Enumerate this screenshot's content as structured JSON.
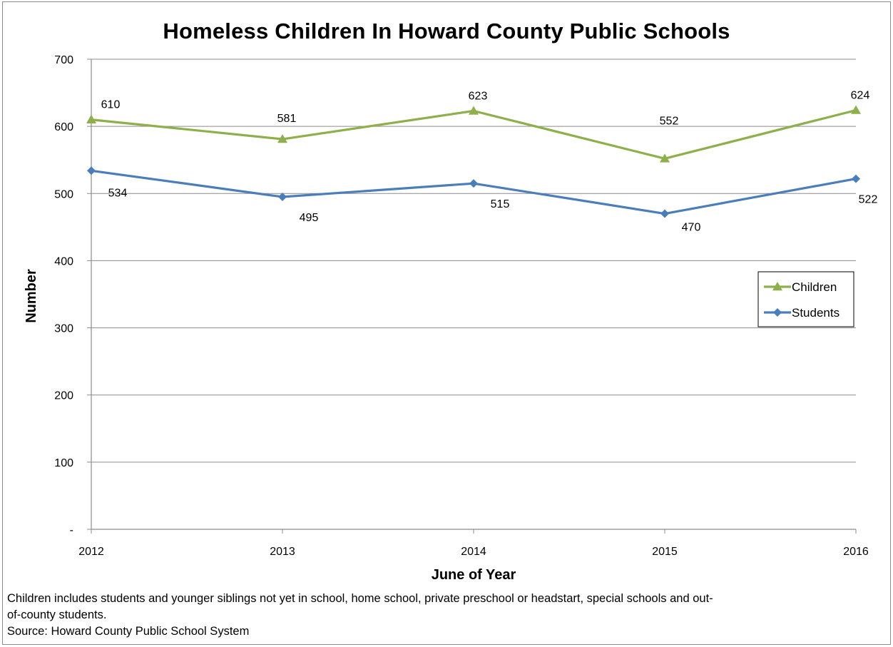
{
  "chart_data": {
    "type": "line",
    "title": "Homeless Children In Howard County Public Schools",
    "xlabel": "June of Year",
    "ylabel": "Number",
    "categories": [
      "2012",
      "2013",
      "2014",
      "2015",
      "2016"
    ],
    "ylim": [
      0,
      700
    ],
    "yticks": [
      0,
      100,
      200,
      300,
      400,
      500,
      600,
      700
    ],
    "ytick_labels": [
      "-",
      "100",
      "200",
      "300",
      "400",
      "500",
      "600",
      "700"
    ],
    "grid": true,
    "legend_position": "right",
    "series": [
      {
        "name": "Children",
        "values": [
          610,
          581,
          623,
          552,
          624
        ],
        "color": "#8db04a",
        "marker": "triangle"
      },
      {
        "name": "Students",
        "values": [
          534,
          495,
          515,
          470,
          522
        ],
        "color": "#4a7ebb",
        "marker": "diamond"
      }
    ]
  },
  "footnote": {
    "line1": "Children includes students and younger siblings not yet in school, home school, private preschool or headstart, special schools and out-",
    "line2": "of-county students.",
    "source": "Source: Howard County Public School System"
  }
}
